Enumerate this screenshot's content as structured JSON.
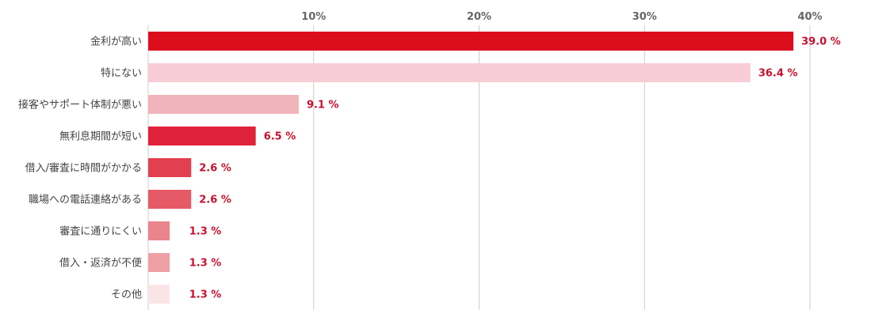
{
  "chart_data": {
    "type": "bar",
    "orientation": "horizontal",
    "categories": [
      "金利が高い",
      "特にない",
      "接客やサポート体制が悪い",
      "無利息期間が短い",
      "借入/審査に時間がかかる",
      "職場への電話連絡がある",
      "審査に通りにくい",
      "借入・返済が不便",
      "その他"
    ],
    "values": [
      39.0,
      36.4,
      9.1,
      6.5,
      2.6,
      2.6,
      1.3,
      1.3,
      1.3
    ],
    "value_labels": [
      "39.0 %",
      "36.4 %",
      "9.1 %",
      "6.5 %",
      "2.6 %",
      "2.6 %",
      "1.3 %",
      "1.3 %",
      "1.3 %"
    ],
    "bar_colors": [
      "#dc0e1e",
      "#f7ccd6",
      "#f1b4bb",
      "#e0233a",
      "#e3404f",
      "#e55a66",
      "#ea848d",
      "#eea0a6",
      "#fae5e6"
    ],
    "xlim": [
      0,
      43
    ],
    "ticks": [
      {
        "value": 10,
        "label": "10%"
      },
      {
        "value": 20,
        "label": "20%"
      },
      {
        "value": 30,
        "label": "30%"
      },
      {
        "value": 40,
        "label": "40%"
      }
    ],
    "x_axis_position": "top",
    "grid": true,
    "grid_color": "#cccccc",
    "label_color": "#c8102e",
    "title": "",
    "xlabel": "",
    "ylabel": "",
    "legend": "none"
  }
}
